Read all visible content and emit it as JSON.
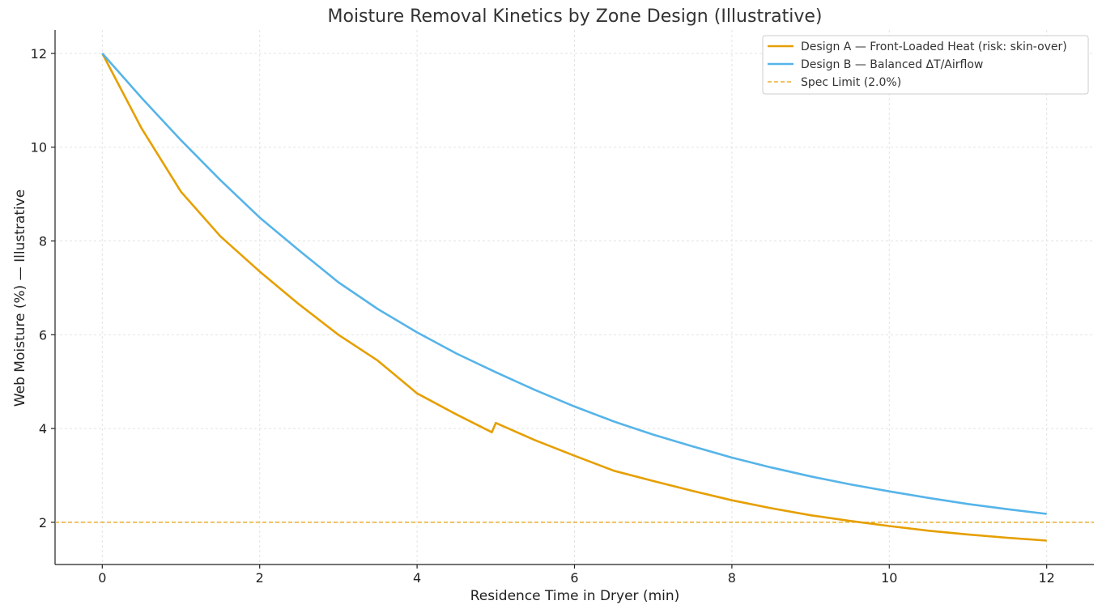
{
  "chart_data": {
    "type": "line",
    "title": "Moisture Removal Kinetics by Zone Design (Illustrative)",
    "xlabel": "Residence Time in Dryer (min)",
    "ylabel": "Web Moisture (%) — Illustrative",
    "xlim": [
      -0.6,
      12.6
    ],
    "ylim": [
      1.1,
      12.5
    ],
    "xticks": [
      0,
      2,
      4,
      6,
      8,
      10,
      12
    ],
    "yticks": [
      2,
      4,
      6,
      8,
      10,
      12
    ],
    "grid": true,
    "legend_position": "top-right",
    "series": [
      {
        "name": "Design A — Front-Loaded Heat (risk: skin-over)",
        "color": "#E69F00",
        "x": [
          0,
          0.5,
          1,
          1.5,
          2,
          2.5,
          3,
          3.5,
          4,
          4.5,
          4.95,
          5.0,
          5.5,
          6,
          6.5,
          7,
          7.5,
          8,
          8.5,
          9,
          9.5,
          10,
          10.5,
          11,
          11.5,
          12
        ],
        "y": [
          12.0,
          10.4,
          9.05,
          8.1,
          7.35,
          6.65,
          6.0,
          5.45,
          4.75,
          4.3,
          3.92,
          4.12,
          3.75,
          3.42,
          3.1,
          2.88,
          2.67,
          2.47,
          2.3,
          2.15,
          2.03,
          1.92,
          1.82,
          1.74,
          1.67,
          1.61
        ]
      },
      {
        "name": "Design B — Balanced ΔT/Airflow",
        "color": "#56B4E9",
        "x": [
          0,
          0.5,
          1,
          1.5,
          2,
          2.5,
          3,
          3.5,
          4,
          4.5,
          5,
          5.5,
          6,
          6.5,
          7,
          7.5,
          8,
          8.5,
          9,
          9.5,
          10,
          10.5,
          11,
          11.5,
          12
        ],
        "y": [
          12.0,
          11.05,
          10.15,
          9.3,
          8.5,
          7.8,
          7.12,
          6.55,
          6.05,
          5.6,
          5.2,
          4.82,
          4.47,
          4.15,
          3.87,
          3.62,
          3.38,
          3.17,
          2.98,
          2.81,
          2.66,
          2.52,
          2.39,
          2.28,
          2.18
        ]
      }
    ],
    "reference_lines": [
      {
        "name": "Spec Limit (2.0%)",
        "y": 2.0,
        "color": "#E69F00",
        "style": "dashed"
      }
    ]
  }
}
